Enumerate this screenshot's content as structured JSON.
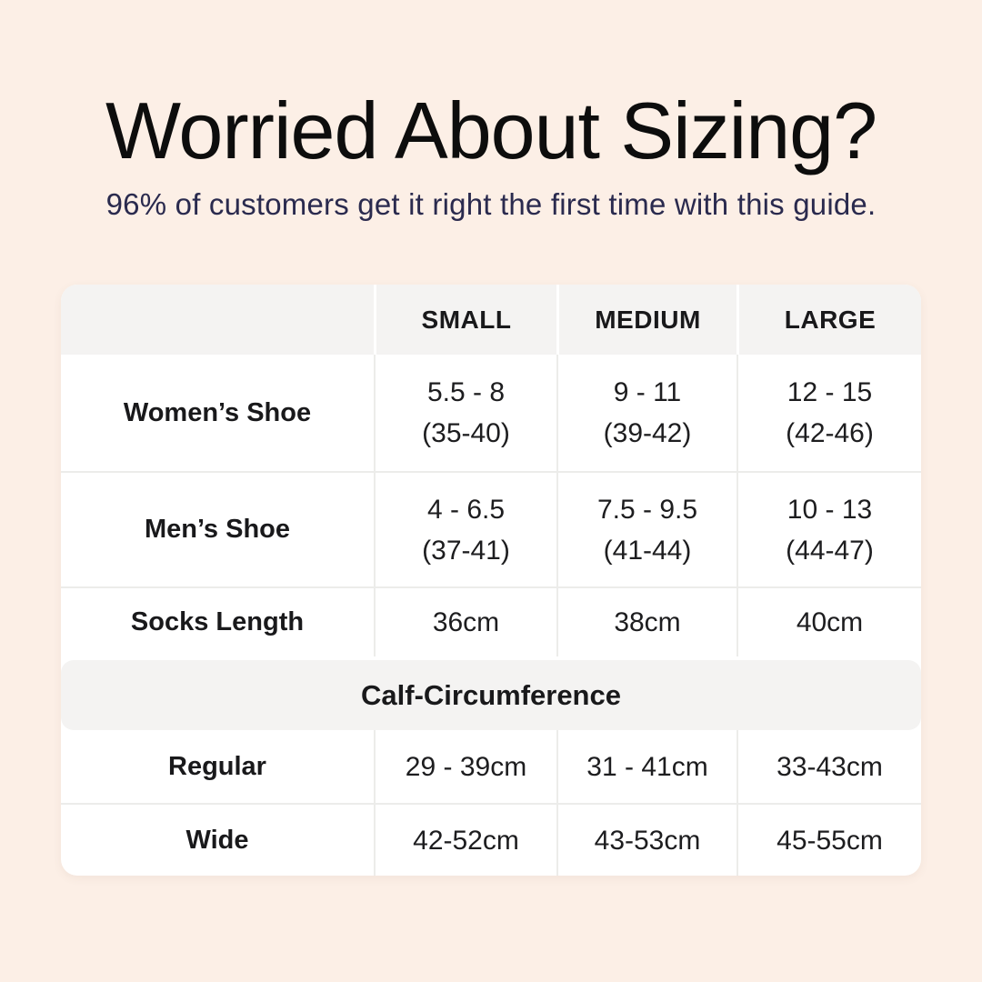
{
  "page": {
    "title": "Worried About Sizing?",
    "subtitle": "96% of customers get it right the first time with this guide."
  },
  "colors": {
    "background": "#fcefe6",
    "table_background": "#ffffff",
    "header_gray": "#f4f3f2",
    "divider": "#ececea",
    "title_text": "#0d0d0d",
    "subtitle_text": "#2a2a4e",
    "body_text": "#1d1d1f"
  },
  "table": {
    "header": {
      "col0": "",
      "col1": "SMALL",
      "col2": "MEDIUM",
      "col3": "LARGE"
    },
    "body": [
      {
        "label": "Women’s Shoe",
        "cells": [
          {
            "line1": "5.5 - 8",
            "line2": "(35-40)"
          },
          {
            "line1": "9 - 11",
            "line2": "(39-42)"
          },
          {
            "line1": "12 - 15",
            "line2": "(42-46)"
          }
        ]
      },
      {
        "label": "Men’s Shoe",
        "cells": [
          {
            "line1": "4 - 6.5",
            "line2": "(37-41)"
          },
          {
            "line1": "7.5 - 9.5",
            "line2": "(41-44)"
          },
          {
            "line1": "10 - 13",
            "line2": "(44-47)"
          }
        ]
      },
      {
        "label": "Socks Length",
        "cells": [
          {
            "line1": "36cm"
          },
          {
            "line1": "38cm"
          },
          {
            "line1": "40cm"
          }
        ]
      }
    ],
    "section": {
      "title": "Calf-Circumference"
    },
    "calf_rows": [
      {
        "label": "Regular",
        "cells": [
          {
            "line1": "29 - 39cm"
          },
          {
            "line1": "31 - 41cm"
          },
          {
            "line1": "33-43cm"
          }
        ]
      },
      {
        "label": "Wide",
        "cells": [
          {
            "line1": "42-52cm"
          },
          {
            "line1": "43-53cm"
          },
          {
            "line1": "45-55cm"
          }
        ]
      }
    ]
  },
  "chart_data": {
    "type": "table",
    "title": "Worried About Sizing?",
    "subtitle": "96% of customers get it right the first time with this guide.",
    "columns": [
      "",
      "SMALL",
      "MEDIUM",
      "LARGE"
    ],
    "rows": [
      [
        "Women’s Shoe",
        "5.5 - 8 (35-40)",
        "9 - 11 (39-42)",
        "12 - 15 (42-46)"
      ],
      [
        "Men’s Shoe",
        "4 - 6.5 (37-41)",
        "7.5 - 9.5 (41-44)",
        "10 - 13 (44-47)"
      ],
      [
        "Socks Length",
        "36cm",
        "38cm",
        "40cm"
      ],
      [
        "Calf-Circumference",
        "",
        "",
        ""
      ],
      [
        "Regular",
        "29 - 39cm",
        "31 - 41cm",
        "33-43cm"
      ],
      [
        "Wide",
        "42-52cm",
        "43-53cm",
        "45-55cm"
      ]
    ],
    "notes": "Row 'Calf-Circumference' is a full-width section header spanning all columns; shoe sizes show US sizes with EU sizes in parentheses."
  }
}
